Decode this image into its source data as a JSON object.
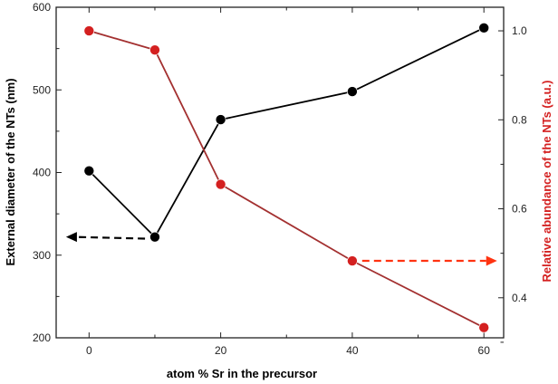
{
  "chart_data": {
    "type": "line",
    "xlabel": "atom % Sr in the precursor",
    "ylabel_left": "External diameter of the NTs (nm)",
    "ylabel_right": "Relative abundance of the NTs (a.u.)",
    "x_ticks": [
      0,
      20,
      40,
      60
    ],
    "x_range": [
      -5,
      63
    ],
    "y_left": {
      "range": [
        200,
        600
      ],
      "ticks": [
        200,
        300,
        400,
        500,
        600
      ]
    },
    "y_right": {
      "range": [
        0.31,
        1.053
      ],
      "ticks": [
        0.4,
        0.6,
        0.8,
        1.0
      ],
      "tick_labels": [
        "0.4",
        "0.6",
        "0.8",
        "1.0"
      ]
    },
    "series": [
      {
        "name": "External diameter",
        "axis": "left",
        "color": "#000000",
        "points": [
          {
            "x": 0,
            "y": 402
          },
          {
            "x": 10,
            "y": 322
          },
          {
            "x": 20,
            "y": 464
          },
          {
            "x": 40,
            "y": 498
          },
          {
            "x": 60,
            "y": 575
          }
        ]
      },
      {
        "name": "Relative abundance",
        "axis": "right",
        "color": "#d42020",
        "line_color": "#a33030",
        "points": [
          {
            "x": 0,
            "y": 1.0
          },
          {
            "x": 10,
            "y": 0.957
          },
          {
            "x": 20,
            "y": 0.655
          },
          {
            "x": 40,
            "y": 0.483
          },
          {
            "x": 60,
            "y": 0.333
          }
        ]
      }
    ],
    "annotations": [
      {
        "name": "left-axis-arrow",
        "color": "#000000",
        "direction": "left",
        "from": {
          "x": 8.5,
          "y_left": 320
        },
        "to": {
          "x": -3.5,
          "y_left": 322
        }
      },
      {
        "name": "right-axis-arrow",
        "color": "#ff3311",
        "direction": "right",
        "from": {
          "x": 41.5,
          "y_right": 0.483
        },
        "to": {
          "x": 62,
          "y_right": 0.483
        }
      }
    ]
  }
}
